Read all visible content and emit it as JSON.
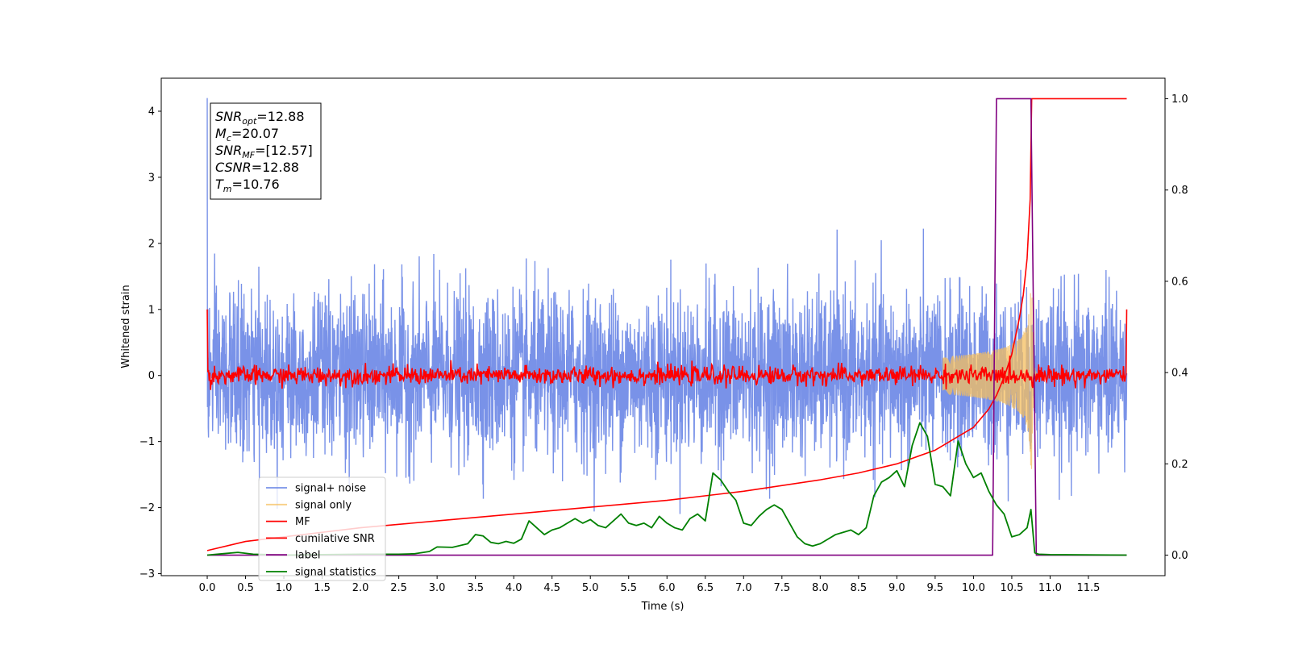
{
  "chart_data": {
    "type": "line",
    "xlabel": "Time (s)",
    "ylabel": "Whitened strain",
    "xlim": [
      -0.6,
      12.5
    ],
    "ylim": [
      -3.03,
      4.5
    ],
    "y2lim": [
      -0.045,
      1.045
    ],
    "x_ticks": [
      0.0,
      0.5,
      1.0,
      1.5,
      2.0,
      2.5,
      3.0,
      3.5,
      4.0,
      4.5,
      5.0,
      5.5,
      6.0,
      6.5,
      7.0,
      7.5,
      8.0,
      8.5,
      9.0,
      9.5,
      10.0,
      10.5,
      11.0,
      11.5
    ],
    "x_tick_labels": [
      "0.0",
      "0.5",
      "1.0",
      "1.5",
      "2.0",
      "2.5",
      "3.0",
      "3.5",
      "4.0",
      "4.5",
      "5.0",
      "5.5",
      "6.0",
      "6.5",
      "7.0",
      "7.5",
      "8.0",
      "8.5",
      "9.0",
      "9.5",
      "10.0",
      "10.5",
      "11.0",
      "11.5"
    ],
    "y_ticks": [
      -3,
      -2,
      -1,
      0,
      1,
      2,
      3,
      4
    ],
    "y_tick_labels": [
      "−3",
      "−2",
      "−1",
      "0",
      "1",
      "2",
      "3",
      "4"
    ],
    "y2_ticks": [
      0.0,
      0.2,
      0.4,
      0.6,
      0.8,
      1.0
    ],
    "y2_tick_labels": [
      "0.0",
      "0.2",
      "0.4",
      "0.6",
      "0.8",
      "1.0"
    ],
    "grid": false,
    "legend_position": "lower-left",
    "colors": {
      "signal_noise": "#6a86e5",
      "signal_only": "#f5bf5f",
      "mf": "#ff0000",
      "cumulative_snr": "#ff0000",
      "label": "#800080",
      "signal_statistics": "#008000"
    },
    "annotation": {
      "lines": [
        {
          "symbol": "SNR",
          "sub": "opt",
          "value": "=12.88"
        },
        {
          "symbol": "M",
          "sub": "c",
          "value": "=20.07"
        },
        {
          "symbol": "SNR",
          "sub": "MF",
          "value": "=[12.57]"
        },
        {
          "symbol": "CSNR",
          "sub": "",
          "value": "=12.88"
        },
        {
          "symbol": "T",
          "sub": "m",
          "value": "=10.76"
        }
      ]
    },
    "series": [
      {
        "name": "signal+ noise",
        "axis": "left",
        "style": "dense-noise",
        "x_range": [
          0.0,
          12.0
        ],
        "approx_band": [
          -1.5,
          1.5
        ],
        "approx_extremes": [
          -2.65,
          4.2
        ]
      },
      {
        "name": "signal only",
        "axis": "left",
        "style": "chirp",
        "chirp_start": 9.6,
        "merger_time": 10.76,
        "end_time": 10.85,
        "peak_amplitude": 1.5
      },
      {
        "name": "MF",
        "axis": "left",
        "style": "noisy-line",
        "x_range": [
          0.0,
          12.0
        ],
        "approx_center": 0.0,
        "approx_spread": 0.1,
        "edge_values": [
          1.0,
          1.0
        ]
      },
      {
        "name": "cumilative SNR",
        "axis": "right",
        "x": [
          0.0,
          0.5,
          1.0,
          2.0,
          3.0,
          4.0,
          5.0,
          6.0,
          7.0,
          8.0,
          8.5,
          9.0,
          9.5,
          10.0,
          10.2,
          10.3,
          10.4,
          10.5,
          10.6,
          10.65,
          10.7,
          10.74,
          10.76,
          12.0
        ],
        "values": [
          0.01,
          0.03,
          0.04,
          0.06,
          0.075,
          0.09,
          0.105,
          0.12,
          0.14,
          0.165,
          0.18,
          0.2,
          0.23,
          0.28,
          0.32,
          0.35,
          0.39,
          0.44,
          0.52,
          0.57,
          0.65,
          0.78,
          1.0,
          1.0
        ]
      },
      {
        "name": "label",
        "axis": "right",
        "x": [
          0.0,
          10.25,
          10.3,
          10.75,
          10.82,
          12.0
        ],
        "values": [
          0.0,
          0.0,
          1.0,
          1.0,
          0.0,
          0.0
        ]
      },
      {
        "name": "signal statistics",
        "axis": "right",
        "x": [
          0.0,
          0.2,
          0.4,
          0.6,
          0.8,
          1.0,
          1.5,
          2.0,
          2.5,
          2.7,
          2.9,
          3.0,
          3.2,
          3.4,
          3.5,
          3.6,
          3.7,
          3.8,
          3.9,
          4.0,
          4.1,
          4.2,
          4.3,
          4.4,
          4.5,
          4.6,
          4.7,
          4.8,
          4.9,
          5.0,
          5.1,
          5.2,
          5.3,
          5.4,
          5.5,
          5.6,
          5.7,
          5.8,
          5.9,
          6.0,
          6.1,
          6.2,
          6.3,
          6.4,
          6.5,
          6.6,
          6.7,
          6.8,
          6.9,
          7.0,
          7.1,
          7.2,
          7.3,
          7.4,
          7.5,
          7.6,
          7.7,
          7.8,
          7.9,
          8.0,
          8.1,
          8.2,
          8.3,
          8.4,
          8.5,
          8.6,
          8.7,
          8.8,
          8.9,
          9.0,
          9.1,
          9.2,
          9.3,
          9.4,
          9.5,
          9.6,
          9.7,
          9.8,
          9.9,
          10.0,
          10.1,
          10.2,
          10.3,
          10.4,
          10.5,
          10.6,
          10.7,
          10.75,
          10.8,
          10.85,
          11.0,
          12.0
        ],
        "values": [
          0.0,
          0.003,
          0.006,
          0.002,
          0.001,
          0.0,
          0.001,
          0.002,
          0.002,
          0.003,
          0.008,
          0.018,
          0.017,
          0.025,
          0.045,
          0.042,
          0.028,
          0.025,
          0.03,
          0.026,
          0.035,
          0.075,
          0.06,
          0.045,
          0.055,
          0.06,
          0.07,
          0.08,
          0.07,
          0.078,
          0.065,
          0.06,
          0.075,
          0.09,
          0.07,
          0.065,
          0.07,
          0.06,
          0.085,
          0.07,
          0.06,
          0.055,
          0.08,
          0.09,
          0.075,
          0.18,
          0.165,
          0.14,
          0.12,
          0.07,
          0.065,
          0.085,
          0.1,
          0.11,
          0.1,
          0.07,
          0.04,
          0.025,
          0.02,
          0.025,
          0.035,
          0.045,
          0.05,
          0.055,
          0.045,
          0.06,
          0.13,
          0.16,
          0.17,
          0.185,
          0.15,
          0.24,
          0.29,
          0.26,
          0.155,
          0.15,
          0.13,
          0.25,
          0.2,
          0.17,
          0.18,
          0.14,
          0.11,
          0.09,
          0.04,
          0.045,
          0.06,
          0.1,
          0.005,
          0.002,
          0.001,
          0.0
        ]
      }
    ]
  }
}
